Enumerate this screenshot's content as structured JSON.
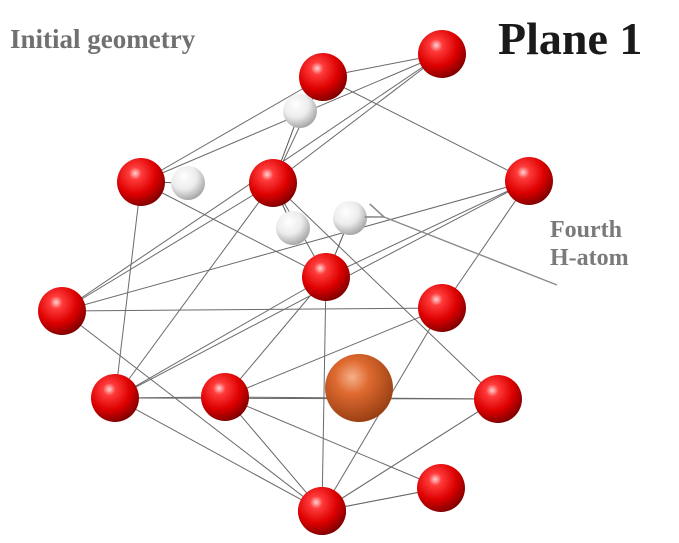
{
  "diagram": {
    "subtitle": "Initial geometry",
    "title": "Plane 1",
    "annotation": [
      "Fourth",
      "H-atom"
    ],
    "colors": {
      "oxygen": "#e00000",
      "hydrogen": "#f0f0f0",
      "center": "#d05a22",
      "bond": "#6a6a6a",
      "arrow": "#8a8a8a"
    },
    "atoms": [
      {
        "id": "O1",
        "element": "O"
      },
      {
        "id": "O2",
        "element": "O"
      },
      {
        "id": "O3",
        "element": "O"
      },
      {
        "id": "O4",
        "element": "O"
      },
      {
        "id": "O5",
        "element": "O"
      },
      {
        "id": "O6",
        "element": "O"
      },
      {
        "id": "O7",
        "element": "O"
      },
      {
        "id": "O8",
        "element": "O"
      },
      {
        "id": "O9",
        "element": "O"
      },
      {
        "id": "O10",
        "element": "O"
      },
      {
        "id": "O11",
        "element": "O"
      },
      {
        "id": "O12",
        "element": "O"
      },
      {
        "id": "O13",
        "element": "O"
      },
      {
        "id": "O14",
        "element": "O"
      },
      {
        "id": "H1",
        "element": "H"
      },
      {
        "id": "H2",
        "element": "H"
      },
      {
        "id": "H3",
        "element": "H"
      },
      {
        "id": "H4",
        "element": "H"
      },
      {
        "id": "M1",
        "element": "center"
      }
    ],
    "bonds": [
      [
        "O1",
        "O2"
      ],
      [
        "O1",
        "O3"
      ],
      [
        "O1",
        "O4"
      ],
      [
        "O1",
        "O6"
      ],
      [
        "O2",
        "O4"
      ],
      [
        "O2",
        "O5"
      ],
      [
        "O2",
        "O3"
      ],
      [
        "O3",
        "O6"
      ],
      [
        "O3",
        "O7"
      ],
      [
        "O3",
        "O11"
      ],
      [
        "O3",
        "O9"
      ],
      [
        "O4",
        "O7"
      ],
      [
        "O4",
        "O9"
      ],
      [
        "O5",
        "O8"
      ],
      [
        "O5",
        "O9"
      ],
      [
        "O5",
        "O6"
      ],
      [
        "O5",
        "O7"
      ],
      [
        "O6",
        "O8"
      ],
      [
        "O6",
        "O12"
      ],
      [
        "O7",
        "O9"
      ],
      [
        "O7",
        "O13"
      ],
      [
        "O7",
        "O10"
      ],
      [
        "O8",
        "O10"
      ],
      [
        "O8",
        "O12"
      ],
      [
        "O9",
        "O10"
      ],
      [
        "O9",
        "O11"
      ],
      [
        "O9",
        "O12"
      ],
      [
        "O10",
        "O14"
      ],
      [
        "O10",
        "O11"
      ],
      [
        "O10",
        "O13"
      ],
      [
        "O11",
        "O12"
      ],
      [
        "O11",
        "O13"
      ],
      [
        "O12",
        "O14"
      ],
      [
        "O13",
        "O14"
      ]
    ]
  }
}
